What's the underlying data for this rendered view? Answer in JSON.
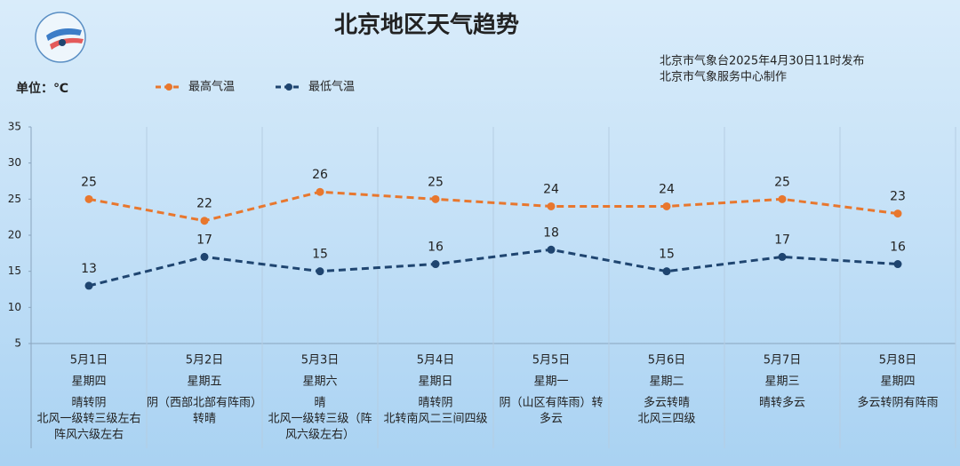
{
  "chart_data": {
    "type": "line",
    "title": "北京地区天气趋势",
    "notes": [
      "北京市气象台2025年4月30日11时发布",
      "北京市气象服务中心制作"
    ],
    "y_label": "单位：℃",
    "categories": [
      "5月1日",
      "5月2日",
      "5月3日",
      "5月4日",
      "5月5日",
      "5月6日",
      "5月7日",
      "5月8日"
    ],
    "weekdays": [
      "星期四",
      "星期五",
      "星期六",
      "星期日",
      "星期一",
      "星期二",
      "星期三",
      "星期四"
    ],
    "weather": [
      [
        "晴转阴",
        "北风一级转三级左右",
        "阵风六级左右"
      ],
      [
        "阴（西部北部有阵雨）",
        "转晴"
      ],
      [
        "晴",
        "北风一级转三级（阵",
        "风六级左右）"
      ],
      [
        "晴转阴",
        "北转南风二三间四级"
      ],
      [
        "阴（山区有阵雨）转",
        "多云"
      ],
      [
        "多云转晴",
        "北风三四级"
      ],
      [
        "晴转多云"
      ],
      [
        "多云转阴有阵雨"
      ]
    ],
    "series": [
      {
        "name": "最高气温",
        "color": "#e8772e",
        "values": [
          25,
          22,
          26,
          25,
          24,
          24,
          25,
          23
        ]
      },
      {
        "name": "最低气温",
        "color": "#1f4570",
        "values": [
          13,
          17,
          15,
          16,
          18,
          15,
          17,
          16
        ]
      }
    ],
    "ylim": [
      5,
      35
    ],
    "yticks": [
      5,
      10,
      15,
      20,
      25,
      30,
      35
    ],
    "grid": false
  }
}
